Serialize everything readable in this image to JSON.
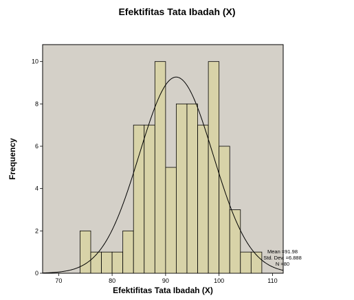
{
  "chart_data": {
    "type": "bar",
    "title": "Efektifitas Tata Ibadah (X)",
    "xlabel": "Efektifitas Tata Ibadah (X)",
    "ylabel": "Frequency",
    "xlim": [
      67,
      112
    ],
    "ylim": [
      0,
      10.8
    ],
    "x_ticks": [
      70,
      80,
      90,
      100,
      110
    ],
    "y_ticks": [
      0,
      2,
      4,
      6,
      8,
      10
    ],
    "bin_width": 2,
    "bins": [
      {
        "start": 74,
        "end": 76,
        "count": 2
      },
      {
        "start": 76,
        "end": 78,
        "count": 1
      },
      {
        "start": 78,
        "end": 80,
        "count": 1
      },
      {
        "start": 80,
        "end": 82,
        "count": 1
      },
      {
        "start": 82,
        "end": 84,
        "count": 2
      },
      {
        "start": 84,
        "end": 86,
        "count": 7
      },
      {
        "start": 86,
        "end": 88,
        "count": 7
      },
      {
        "start": 88,
        "end": 90,
        "count": 10
      },
      {
        "start": 90,
        "end": 92,
        "count": 5
      },
      {
        "start": 92,
        "end": 94,
        "count": 8
      },
      {
        "start": 94,
        "end": 96,
        "count": 8
      },
      {
        "start": 96,
        "end": 98,
        "count": 7
      },
      {
        "start": 98,
        "end": 100,
        "count": 10
      },
      {
        "start": 100,
        "end": 102,
        "count": 6
      },
      {
        "start": 102,
        "end": 104,
        "count": 3
      },
      {
        "start": 104,
        "end": 106,
        "count": 1
      },
      {
        "start": 106,
        "end": 108,
        "count": 1
      }
    ],
    "normal_curve": {
      "mean": 91.98,
      "std_dev": 6.888,
      "n": 80
    },
    "stats": {
      "mean_label": "Mean =91.98",
      "std_label": "Std. Dev. =6.888",
      "n_label": "N =80"
    },
    "grid": false,
    "colors": {
      "plot_background": "#d4d0c8",
      "bar_fill": "#d8d3a8",
      "bar_stroke": "#000000",
      "curve": "#000000"
    }
  }
}
